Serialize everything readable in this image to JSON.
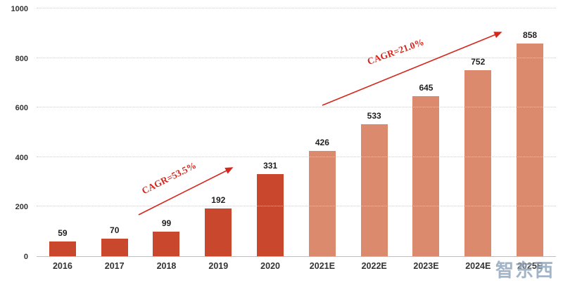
{
  "chart_data": {
    "type": "bar",
    "title": "",
    "categories": [
      "2016",
      "2017",
      "2018",
      "2019",
      "2020",
      "2021E",
      "2022E",
      "2023E",
      "2024E",
      "2025E"
    ],
    "values": [
      59,
      70,
      99,
      192,
      331,
      426,
      533,
      645,
      752,
      858
    ],
    "series_split_index": 5,
    "ylim": [
      0,
      1000
    ],
    "yticks": [
      0,
      200,
      400,
      600,
      800,
      1000
    ],
    "grid": "horizontal dotted",
    "legend": "none",
    "annotations": [
      {
        "text": "CAGR=53.5%",
        "color": "#d7261b"
      },
      {
        "text": "CAGR=21.0%",
        "color": "#d7261b"
      }
    ]
  },
  "watermark": {
    "text": "智东西"
  },
  "colors": {
    "bar_actual": "#c9472c",
    "bar_estimate": "#db8a6d",
    "annotation_red": "#d7261b",
    "grid": "#cdcdcd",
    "axis_line": "#bfbfbf",
    "tick_text": "#333333",
    "value_text": "#1f1f1f",
    "watermark": "#8ba3bb"
  }
}
